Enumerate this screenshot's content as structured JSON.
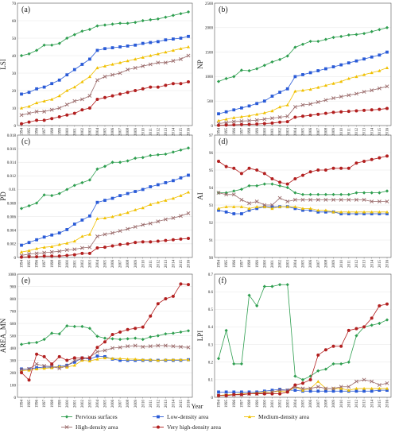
{
  "x_axis_label": "Year",
  "legend": [
    {
      "name": "Pervious surfaces",
      "color": "#2e9e4f",
      "marker": "diamond"
    },
    {
      "name": "Low-density area",
      "color": "#2a5bd7",
      "marker": "square"
    },
    {
      "name": "Medium-density area",
      "color": "#f0c000",
      "marker": "triangle"
    },
    {
      "name": "High-density area",
      "color": "#9a6b6b",
      "marker": "x"
    },
    {
      "name": "Very high-density area",
      "color": "#b21f1f",
      "marker": "circle"
    }
  ],
  "chart_data": [
    {
      "type": "line",
      "panel": "(a)",
      "ylabel": "LSI",
      "ylim": [
        0,
        70
      ],
      "yticks": [
        "0",
        "10",
        "20",
        "30",
        "40",
        "50",
        "60",
        "70"
      ],
      "x": [
        "1994",
        "1995",
        "1996",
        "1997",
        "1998",
        "1999",
        "2000",
        "2001",
        "2002",
        "2003",
        "2004",
        "2005",
        "2006",
        "2007",
        "2008",
        "2009",
        "2010",
        "2011",
        "2012",
        "2013",
        "2014",
        "2015",
        "2016"
      ],
      "series": [
        {
          "name": "Pervious surfaces",
          "values": [
            40,
            41,
            43,
            46,
            46,
            47,
            50,
            52,
            54,
            55,
            57,
            57.5,
            58,
            58.5,
            58.5,
            59,
            60,
            60.5,
            61,
            62,
            63,
            64,
            65
          ]
        },
        {
          "name": "Low-density area",
          "values": [
            18,
            19,
            21,
            22,
            24,
            26,
            29,
            32,
            35,
            38,
            43,
            44,
            44.5,
            45,
            45.5,
            46,
            47,
            47.5,
            48,
            49,
            49.5,
            50,
            51
          ]
        },
        {
          "name": "Medium-density area",
          "values": [
            10,
            11,
            13,
            14,
            15,
            17,
            20,
            22,
            25,
            28,
            33,
            34,
            35,
            36,
            37,
            38,
            39,
            40,
            41,
            42,
            43,
            44,
            45
          ]
        },
        {
          "name": "High-density area",
          "values": [
            6,
            7,
            8,
            8,
            9,
            10,
            12,
            14,
            15,
            17,
            26,
            28,
            29,
            30,
            32,
            33,
            34,
            35,
            36,
            36,
            37,
            38,
            40
          ]
        },
        {
          "name": "Very high-density area",
          "values": [
            1,
            2,
            3,
            3,
            4,
            5,
            6,
            7,
            9,
            10,
            15,
            16,
            17,
            18,
            19,
            20,
            21,
            22,
            22,
            23,
            24,
            24,
            25
          ]
        }
      ]
    },
    {
      "type": "line",
      "panel": "(b)",
      "ylabel": "NP",
      "ylim": [
        0,
        2500
      ],
      "yticks": [
        "0",
        "500",
        "1000",
        "1500",
        "2000",
        "2500"
      ],
      "x": [
        "1994",
        "1995",
        "1996",
        "1997",
        "1998",
        "1999",
        "2000",
        "2001",
        "2002",
        "2003",
        "2004",
        "2005",
        "2006",
        "2007",
        "2008",
        "2009",
        "2010",
        "2011",
        "2012",
        "2013",
        "2014",
        "2015",
        "2016"
      ],
      "series": [
        {
          "name": "Pervious surfaces",
          "values": [
            900,
            960,
            1000,
            1130,
            1120,
            1160,
            1230,
            1300,
            1350,
            1420,
            1600,
            1660,
            1720,
            1720,
            1760,
            1800,
            1820,
            1850,
            1860,
            1880,
            1920,
            1960,
            2000
          ]
        },
        {
          "name": "Low-density area",
          "values": [
            240,
            280,
            320,
            360,
            400,
            450,
            500,
            600,
            680,
            750,
            1000,
            1040,
            1080,
            1120,
            1160,
            1200,
            1240,
            1280,
            1320,
            1360,
            1400,
            1440,
            1500
          ]
        },
        {
          "name": "Medium-density area",
          "values": [
            100,
            130,
            160,
            180,
            200,
            230,
            260,
            300,
            380,
            420,
            700,
            720,
            740,
            780,
            820,
            860,
            900,
            960,
            1000,
            1040,
            1080,
            1120,
            1180
          ]
        },
        {
          "name": "High-density area",
          "values": [
            40,
            60,
            80,
            90,
            100,
            110,
            130,
            150,
            170,
            190,
            380,
            420,
            440,
            480,
            520,
            560,
            590,
            620,
            650,
            690,
            720,
            760,
            800
          ]
        },
        {
          "name": "Very high-density area",
          "values": [
            5,
            10,
            15,
            20,
            25,
            30,
            40,
            50,
            70,
            80,
            170,
            190,
            210,
            230,
            250,
            270,
            280,
            290,
            300,
            310,
            320,
            330,
            350
          ]
        }
      ]
    },
    {
      "type": "line",
      "panel": "(c)",
      "ylabel": "PD",
      "ylim": [
        0,
        0.018
      ],
      "yticks": [
        "0",
        "0.002",
        "0.004",
        "0.006",
        "0.008",
        "0.01",
        "0.012",
        "0.014",
        "0.016",
        "0.018"
      ],
      "x": [
        "1994",
        "1995",
        "1996",
        "1997",
        "1998",
        "1999",
        "2000",
        "2001",
        "2002",
        "2003",
        "2004",
        "2005",
        "2006",
        "2007",
        "2008",
        "2009",
        "2010",
        "2011",
        "2012",
        "2013",
        "2014",
        "2015",
        "2016"
      ],
      "series": [
        {
          "name": "Pervious surfaces",
          "values": [
            0.0072,
            0.0076,
            0.008,
            0.0092,
            0.0091,
            0.0094,
            0.01,
            0.0106,
            0.011,
            0.0114,
            0.013,
            0.0134,
            0.014,
            0.014,
            0.0142,
            0.0146,
            0.0147,
            0.015,
            0.0151,
            0.0152,
            0.0155,
            0.0158,
            0.0161
          ]
        },
        {
          "name": "Low-density area",
          "values": [
            0.0018,
            0.0022,
            0.0026,
            0.003,
            0.0033,
            0.0036,
            0.0041,
            0.0049,
            0.0055,
            0.0061,
            0.0081,
            0.0084,
            0.0087,
            0.0091,
            0.0094,
            0.0097,
            0.01,
            0.0104,
            0.0107,
            0.011,
            0.0113,
            0.0117,
            0.0121
          ]
        },
        {
          "name": "Medium-density area",
          "values": [
            0.0008,
            0.001,
            0.0013,
            0.0015,
            0.0016,
            0.0019,
            0.0021,
            0.0024,
            0.0031,
            0.0034,
            0.0057,
            0.0058,
            0.006,
            0.0063,
            0.0066,
            0.007,
            0.0073,
            0.0078,
            0.0081,
            0.0084,
            0.0087,
            0.0091,
            0.0096
          ]
        },
        {
          "name": "High-density area",
          "values": [
            0.0003,
            0.0005,
            0.0006,
            0.0007,
            0.0008,
            0.0009,
            0.0011,
            0.0012,
            0.0014,
            0.0015,
            0.0031,
            0.0034,
            0.0036,
            0.0039,
            0.0042,
            0.0045,
            0.0048,
            0.005,
            0.0053,
            0.0056,
            0.0058,
            0.0061,
            0.0065
          ]
        },
        {
          "name": "Very high-density area",
          "values": [
            4e-05,
            0.0001,
            0.0001,
            0.0002,
            0.0002,
            0.0002,
            0.0003,
            0.0004,
            0.0006,
            0.0006,
            0.0014,
            0.0015,
            0.0017,
            0.0019,
            0.002,
            0.0022,
            0.0023,
            0.0023,
            0.0024,
            0.0025,
            0.0026,
            0.0027,
            0.0028
          ]
        }
      ]
    },
    {
      "type": "line",
      "panel": "(d)",
      "ylabel": "AI",
      "ylim": [
        90,
        97
      ],
      "yticks": [
        "90",
        "91",
        "92",
        "93",
        "94",
        "95",
        "96",
        "97"
      ],
      "x": [
        "1994",
        "1995",
        "1996",
        "1997",
        "1998",
        "1999",
        "2000",
        "2001",
        "2002",
        "2003",
        "2004",
        "2005",
        "2006",
        "2007",
        "2008",
        "2009",
        "2010",
        "2011",
        "2012",
        "2013",
        "2014",
        "2015",
        "2016"
      ],
      "series": [
        {
          "name": "Pervious surfaces",
          "values": [
            93.7,
            93.7,
            93.8,
            93.9,
            94.1,
            94.1,
            94.2,
            94.2,
            94.1,
            94.0,
            93.7,
            93.6,
            93.6,
            93.6,
            93.6,
            93.6,
            93.6,
            93.6,
            93.7,
            93.7,
            93.7,
            93.7,
            93.8
          ]
        },
        {
          "name": "Low-density area",
          "values": [
            92.7,
            92.6,
            92.5,
            92.5,
            92.7,
            92.8,
            92.9,
            92.9,
            92.9,
            92.9,
            92.8,
            92.7,
            92.7,
            92.6,
            92.6,
            92.6,
            92.5,
            92.5,
            92.5,
            92.5,
            92.5,
            92.5,
            92.5
          ]
        },
        {
          "name": "Medium-density area",
          "values": [
            92.8,
            92.9,
            92.9,
            92.9,
            92.8,
            92.9,
            92.9,
            92.8,
            92.9,
            92.9,
            92.9,
            92.8,
            92.8,
            92.7,
            92.7,
            92.6,
            92.6,
            92.6,
            92.6,
            92.6,
            92.6,
            92.6,
            92.6
          ]
        },
        {
          "name": "High-density area",
          "values": [
            93.7,
            93.6,
            93.6,
            93.3,
            93.1,
            93.2,
            93.0,
            93.0,
            93.4,
            93.2,
            93.3,
            93.3,
            93.3,
            93.3,
            93.3,
            93.3,
            93.3,
            93.3,
            93.3,
            93.3,
            93.2,
            93.2,
            93.2
          ]
        },
        {
          "name": "Very high-density area",
          "values": [
            95.5,
            95.2,
            95.1,
            94.8,
            95.1,
            95.0,
            94.8,
            94.5,
            94.3,
            94.2,
            94.5,
            94.7,
            94.9,
            95.0,
            95.0,
            95.1,
            95.1,
            95.1,
            95.4,
            95.5,
            95.6,
            95.7,
            95.8
          ]
        }
      ]
    },
    {
      "type": "line",
      "panel": "(e)",
      "ylabel": "AREA_MN",
      "ylim": [
        0,
        1000
      ],
      "yticks": [
        "0",
        "100",
        "200",
        "300",
        "400",
        "500",
        "600",
        "700",
        "800",
        "900",
        "1000"
      ],
      "x": [
        "1994",
        "1995",
        "1996",
        "1997",
        "1998",
        "1999",
        "2000",
        "2001",
        "2002",
        "2003",
        "2004",
        "2005",
        "2006",
        "2007",
        "2008",
        "2009",
        "2010",
        "2011",
        "2012",
        "2013",
        "2014",
        "2015",
        "2016"
      ],
      "series": [
        {
          "name": "Pervious surfaces",
          "values": [
            430,
            440,
            445,
            470,
            520,
            515,
            580,
            575,
            575,
            560,
            495,
            480,
            475,
            470,
            475,
            480,
            470,
            490,
            500,
            515,
            520,
            530,
            540
          ]
        },
        {
          "name": "Low-density area",
          "values": [
            230,
            230,
            240,
            245,
            245,
            250,
            260,
            285,
            320,
            310,
            335,
            330,
            310,
            300,
            300,
            300,
            300,
            300,
            300,
            300,
            300,
            300,
            305
          ]
        },
        {
          "name": "Medium-density area",
          "values": [
            215,
            220,
            230,
            235,
            240,
            250,
            245,
            260,
            300,
            295,
            310,
            320,
            315,
            315,
            310,
            310,
            305,
            305,
            300,
            305,
            305,
            305,
            305
          ]
        },
        {
          "name": "High-density area",
          "values": [
            225,
            230,
            270,
            255,
            250,
            235,
            255,
            300,
            310,
            325,
            370,
            380,
            400,
            405,
            415,
            420,
            410,
            415,
            420,
            420,
            415,
            410,
            405
          ]
        },
        {
          "name": "Very high-density area",
          "values": [
            200,
            140,
            350,
            330,
            270,
            330,
            300,
            320,
            320,
            320,
            405,
            450,
            510,
            530,
            550,
            560,
            570,
            660,
            760,
            800,
            820,
            920,
            915
          ]
        }
      ]
    },
    {
      "type": "line",
      "panel": "(f)",
      "ylabel": "LPI",
      "ylim": [
        0,
        0.7
      ],
      "yticks": [
        "0",
        "0.1",
        "0.2",
        "0.3",
        "0.4",
        "0.5",
        "0.6",
        "0.7"
      ],
      "x": [
        "1994",
        "1995",
        "1996",
        "1997",
        "1998",
        "1999",
        "2000",
        "2001",
        "2002",
        "2003",
        "2004",
        "2005",
        "2006",
        "2007",
        "2008",
        "2009",
        "2010",
        "2011",
        "2012",
        "2013",
        "2014",
        "2015",
        "2016"
      ],
      "series": [
        {
          "name": "Pervious surfaces",
          "values": [
            0.22,
            0.38,
            0.19,
            0.19,
            0.58,
            0.52,
            0.63,
            0.63,
            0.64,
            0.64,
            0.12,
            0.1,
            0.12,
            0.15,
            0.16,
            0.19,
            0.19,
            0.2,
            0.35,
            0.4,
            0.41,
            0.42,
            0.44
          ]
        },
        {
          "name": "Low-density area",
          "values": [
            0.03,
            0.03,
            0.03,
            0.03,
            0.03,
            0.03,
            0.035,
            0.04,
            0.045,
            0.04,
            0.04,
            0.035,
            0.035,
            0.035,
            0.035,
            0.035,
            0.035,
            0.035,
            0.035,
            0.035,
            0.035,
            0.04,
            0.04
          ]
        },
        {
          "name": "Medium-density area",
          "values": [
            0.01,
            0.015,
            0.015,
            0.02,
            0.02,
            0.025,
            0.03,
            0.03,
            0.035,
            0.03,
            0.06,
            0.04,
            0.05,
            0.09,
            0.05,
            0.05,
            0.05,
            0.04,
            0.05,
            0.05,
            0.05,
            0.05,
            0.05
          ]
        },
        {
          "name": "High-density area",
          "values": [
            0.01,
            0.01,
            0.015,
            0.015,
            0.02,
            0.02,
            0.025,
            0.03,
            0.04,
            0.04,
            0.06,
            0.05,
            0.05,
            0.06,
            0.05,
            0.05,
            0.06,
            0.06,
            0.09,
            0.1,
            0.09,
            0.07,
            0.08
          ]
        },
        {
          "name": "Very high-density area",
          "values": [
            0.01,
            0.01,
            0.015,
            0.015,
            0.02,
            0.02,
            0.02,
            0.02,
            0.02,
            0.03,
            0.07,
            0.08,
            0.1,
            0.24,
            0.27,
            0.29,
            0.29,
            0.38,
            0.39,
            0.4,
            0.45,
            0.52,
            0.53
          ]
        }
      ]
    }
  ]
}
